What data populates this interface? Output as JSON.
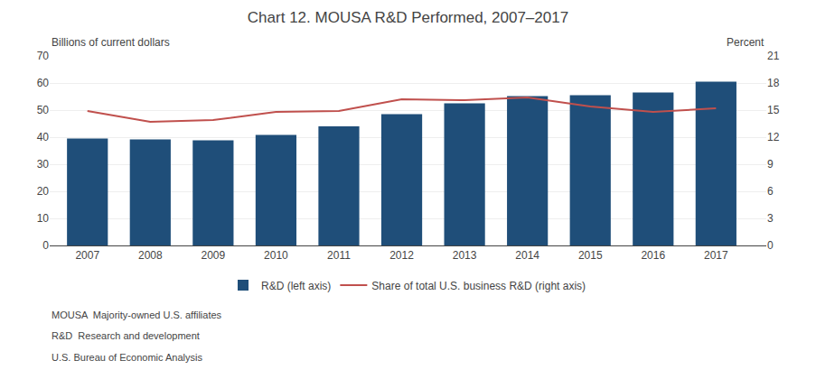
{
  "chart_data": {
    "type": "bar",
    "title": "Chart 12. MOUSA R&D Performed, 2007–2017",
    "ylabel": "Billions of current dollars",
    "y2label": "Percent",
    "x": [
      2007,
      2008,
      2009,
      2010,
      2011,
      2012,
      2013,
      2014,
      2015,
      2016,
      2017
    ],
    "xlim": [
      2006.4,
      2017.8
    ],
    "xticks": [
      2007,
      2008,
      2009,
      2010,
      2011,
      2012,
      2013,
      2014,
      2015,
      2016,
      2017
    ],
    "series": [
      {
        "name": "R&D (left axis)",
        "type": "bar",
        "color": "#1F4E79",
        "values": [
          39.5,
          39.2,
          38.8,
          40.8,
          44.0,
          48.5,
          52.5,
          55.2,
          55.5,
          56.5,
          60.5
        ]
      },
      {
        "name": "Share of total U.S. business R&D (right axis)",
        "type": "line",
        "color": "#C0504D",
        "axis": "y2",
        "values": [
          14.9,
          13.7,
          13.9,
          14.8,
          14.9,
          16.2,
          16.1,
          16.4,
          15.4,
          14.8,
          15.2
        ]
      }
    ],
    "ylim": [
      0,
      70
    ],
    "yticks": [
      0,
      10,
      20,
      30,
      40,
      50,
      60,
      70
    ],
    "y2lim": [
      0,
      21
    ],
    "y2ticks": [
      0,
      3,
      6,
      9,
      12,
      15,
      18,
      21
    ],
    "grid": true,
    "legend": "bottom",
    "annotations": [
      "MOUSA  Majority-owned U.S. affiliates",
      "R&D  Research and development",
      "U.S. Bureau of Economic Analysis"
    ]
  }
}
